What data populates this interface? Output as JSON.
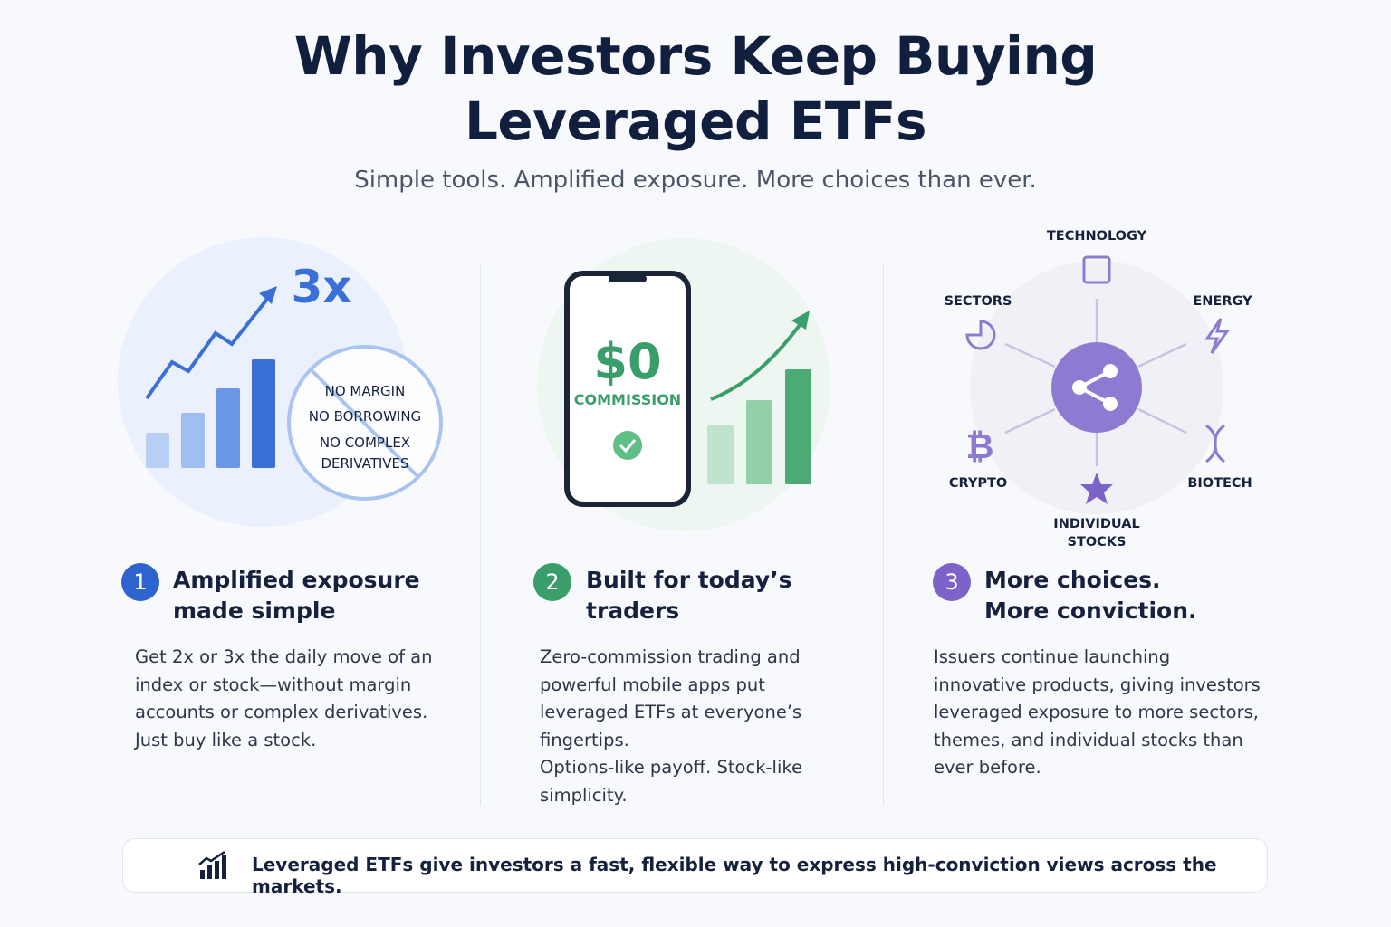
{
  "header": {
    "title": [
      "Why Investors Keep Buying",
      "Leveraged ETFs"
    ],
    "subtitle": "Simple tools. Amplified exposure. More choices than ever."
  },
  "columns": [
    {
      "graphic": {
        "multiplier": "3x",
        "crossed_out": [
          "NO MARGIN",
          "NO BORROWING",
          "NO COMPLEX",
          "DERIVATIVES"
        ]
      },
      "number": "1",
      "heading": [
        "Amplified exposure",
        "made simple"
      ],
      "body": [
        "Get 2x or 3x the daily move of an index or stock—without margin accounts or complex derivatives. Just buy like a stock."
      ]
    },
    {
      "graphic": {
        "price": "$0",
        "label": "COMMISSION"
      },
      "number": "2",
      "heading": [
        "Built for today’s",
        "traders"
      ],
      "body": [
        "Zero-commission trading and powerful mobile apps put leveraged ETFs at everyone’s fingertips.",
        "Options-like payoff. Stock-like simplicity."
      ]
    },
    {
      "graphic": {
        "labels": [
          "TECHNOLOGY",
          "SECTORS",
          "ENERGY",
          "CRYPTO",
          "BIOTECH",
          "INDIVIDUAL",
          "STOCKS"
        ]
      },
      "number": "3",
      "heading": [
        "More choices.",
        "More conviction."
      ],
      "body": [
        "Issuers continue launching innovative products, giving investors leveraged exposure to more sectors, themes, and individual stocks than ever before."
      ]
    }
  ],
  "footer": {
    "text": "Leveraged ETFs give investors a fast, flexible way to express high-conviction views across the markets."
  }
}
